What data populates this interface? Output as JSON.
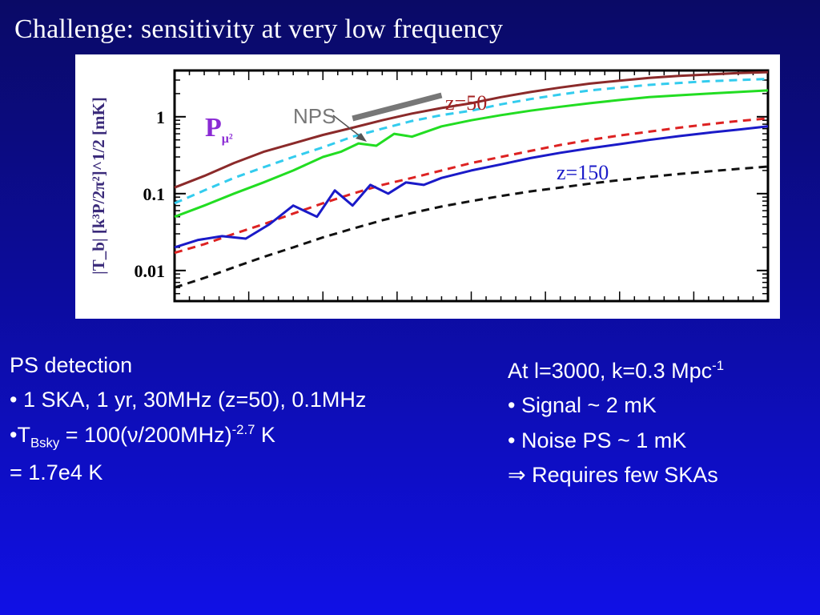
{
  "slide": {
    "title": "Challenge: sensitivity at very low frequency"
  },
  "left": {
    "heading": "PS  detection",
    "item1": "• 1 SKA, 1 yr, 30MHz (z=50), 0.1MHz",
    "tsky_prefix": "•T",
    "tsky_sub": "Bsky",
    "tsky_mid": " = 100(ν/200MHz)",
    "tsky_exp": "-2.7",
    "tsky_unit": " K",
    "result": "= 1.7e4 K"
  },
  "right": {
    "line1_prefix": "At l=3000, k=0.3 Mpc",
    "line1_exp": "-1",
    "item1": "• Signal ~ 2 mK",
    "item2": "• Noise PS ~ 1 mK",
    "item3": "⇒ Requires few SKAs"
  },
  "chart_data": {
    "type": "line",
    "ylabel": "|T_b| [k³P/2π²]^1/2 [mK]",
    "yscale": "log",
    "ylim": [
      0.004,
      4
    ],
    "yticks": [
      0.01,
      0.1,
      1
    ],
    "yticklabels": [
      "0.01",
      "0.1",
      "1"
    ],
    "xlim": [
      0,
      1
    ],
    "inset_label": "P_μ²",
    "annotations": [
      {
        "text": "z=50",
        "color": "#a52222"
      },
      {
        "text": "z=150",
        "color": "#1a1ac8"
      },
      {
        "text": "NPS",
        "color": "#777777"
      }
    ],
    "nps_segment": {
      "x": [
        0.3,
        0.45
      ],
      "y": [
        0.95,
        1.9
      ],
      "color": "#777777"
    },
    "series": [
      {
        "color": "#8b2a2a",
        "dash": "solid",
        "x": [
          0.0,
          0.05,
          0.1,
          0.15,
          0.2,
          0.25,
          0.3,
          0.35,
          0.4,
          0.45,
          0.5,
          0.55,
          0.6,
          0.65,
          0.7,
          0.75,
          0.8,
          0.85,
          0.9,
          0.95,
          1.0
        ],
        "y": [
          0.12,
          0.17,
          0.25,
          0.35,
          0.45,
          0.58,
          0.72,
          0.9,
          1.1,
          1.3,
          1.5,
          1.8,
          2.1,
          2.4,
          2.7,
          2.95,
          3.2,
          3.4,
          3.55,
          3.7,
          3.8
        ]
      },
      {
        "color": "#33ccee",
        "dash": "dashed",
        "x": [
          0.0,
          0.05,
          0.1,
          0.15,
          0.2,
          0.25,
          0.3,
          0.35,
          0.4,
          0.45,
          0.5,
          0.55,
          0.6,
          0.65,
          0.7,
          0.75,
          0.8,
          0.85,
          0.9,
          0.95,
          1.0
        ],
        "y": [
          0.075,
          0.11,
          0.16,
          0.22,
          0.3,
          0.4,
          0.55,
          0.7,
          0.88,
          1.05,
          1.2,
          1.45,
          1.7,
          1.95,
          2.2,
          2.4,
          2.6,
          2.75,
          2.9,
          3.0,
          3.1
        ]
      },
      {
        "color": "#22dd22",
        "dash": "solid",
        "x": [
          0.0,
          0.05,
          0.1,
          0.15,
          0.2,
          0.25,
          0.28,
          0.31,
          0.34,
          0.37,
          0.4,
          0.45,
          0.5,
          0.55,
          0.6,
          0.65,
          0.7,
          0.75,
          0.8,
          0.85,
          0.9,
          0.95,
          1.0
        ],
        "y": [
          0.05,
          0.07,
          0.1,
          0.14,
          0.2,
          0.3,
          0.35,
          0.45,
          0.42,
          0.6,
          0.55,
          0.75,
          0.9,
          1.05,
          1.2,
          1.35,
          1.5,
          1.65,
          1.8,
          1.9,
          2.0,
          2.1,
          2.2
        ]
      },
      {
        "color": "#dd2222",
        "dash": "dashed",
        "x": [
          0.0,
          0.05,
          0.1,
          0.15,
          0.2,
          0.25,
          0.3,
          0.35,
          0.4,
          0.45,
          0.5,
          0.55,
          0.6,
          0.65,
          0.7,
          0.75,
          0.8,
          0.85,
          0.9,
          0.95,
          1.0
        ],
        "y": [
          0.017,
          0.022,
          0.03,
          0.04,
          0.055,
          0.075,
          0.1,
          0.13,
          0.16,
          0.2,
          0.25,
          0.3,
          0.36,
          0.43,
          0.5,
          0.57,
          0.64,
          0.72,
          0.8,
          0.88,
          0.95
        ]
      },
      {
        "color": "#1a1ac8",
        "dash": "solid",
        "x": [
          0.0,
          0.04,
          0.08,
          0.12,
          0.16,
          0.2,
          0.24,
          0.27,
          0.3,
          0.33,
          0.36,
          0.39,
          0.42,
          0.45,
          0.5,
          0.55,
          0.6,
          0.65,
          0.7,
          0.75,
          0.8,
          0.85,
          0.9,
          0.95,
          1.0
        ],
        "y": [
          0.02,
          0.025,
          0.028,
          0.026,
          0.04,
          0.07,
          0.05,
          0.11,
          0.07,
          0.13,
          0.1,
          0.14,
          0.13,
          0.16,
          0.2,
          0.24,
          0.29,
          0.34,
          0.39,
          0.44,
          0.5,
          0.56,
          0.62,
          0.68,
          0.75
        ]
      },
      {
        "color": "#111111",
        "dash": "dashed",
        "x": [
          0.0,
          0.05,
          0.1,
          0.15,
          0.2,
          0.25,
          0.3,
          0.35,
          0.4,
          0.45,
          0.5,
          0.55,
          0.6,
          0.65,
          0.7,
          0.75,
          0.8,
          0.85,
          0.9,
          0.95,
          1.0
        ],
        "y": [
          0.006,
          0.008,
          0.011,
          0.015,
          0.02,
          0.027,
          0.035,
          0.045,
          0.056,
          0.068,
          0.08,
          0.093,
          0.107,
          0.12,
          0.135,
          0.15,
          0.165,
          0.18,
          0.195,
          0.21,
          0.225
        ]
      }
    ]
  }
}
